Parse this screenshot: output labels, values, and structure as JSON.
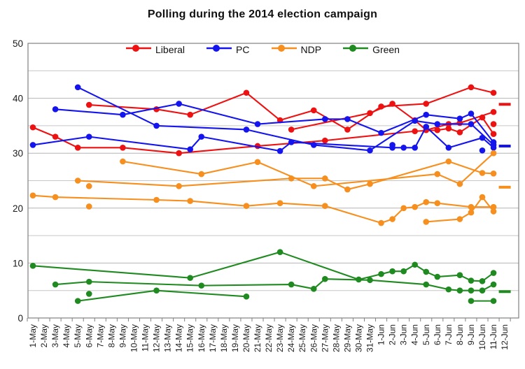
{
  "title": "Polling during the 2014 election campaign",
  "chart_data": {
    "type": "line",
    "title": "Polling during the 2014 election campaign",
    "xlabel": "",
    "ylabel": "",
    "ylim": [
      0,
      50
    ],
    "y_ticks": [
      0,
      10,
      20,
      30,
      40,
      50
    ],
    "gridline_step": 5,
    "legend_position": "top-center",
    "grid": true,
    "colors": {
      "liberal": "#ee1111",
      "pc": "#1414ee",
      "ndp": "#f78f1e",
      "green": "#1f8a1f",
      "gridline": "#c6c6c6",
      "plot_border": "#808080",
      "axis_text": "#1a1a1a"
    },
    "x_categories": [
      "1-May",
      "2-May",
      "3-May",
      "4-May",
      "5-May",
      "6-May",
      "7-May",
      "8-May",
      "9-May",
      "10-May",
      "11-May",
      "12-May",
      "13-May",
      "14-May",
      "15-May",
      "16-May",
      "17-May",
      "18-May",
      "19-May",
      "20-May",
      "21-May",
      "22-May",
      "23-May",
      "24-May",
      "25-May",
      "26-May",
      "27-May",
      "28-May",
      "29-May",
      "30-May",
      "31-May",
      "1-Jun",
      "2-Jun",
      "3-Jun",
      "4-Jun",
      "5-Jun",
      "6-Jun",
      "7-Jun",
      "8-Jun",
      "9-Jun",
      "10-Jun",
      "11-Jun",
      "12-Jun"
    ],
    "legend": [
      {
        "label": "Liberal",
        "color": "#ee1111"
      },
      {
        "label": "PC",
        "color": "#1414ee"
      },
      {
        "label": "NDP",
        "color": "#f78f1e"
      },
      {
        "label": "Green",
        "color": "#1f8a1f"
      }
    ],
    "series": [
      {
        "party": "Liberal",
        "track": 1,
        "color": "#ee1111",
        "points": [
          [
            "1-May",
            34.7
          ],
          [
            "3-May",
            33
          ],
          [
            "5-May",
            31
          ],
          [
            "9-May",
            31
          ],
          [
            "14-May",
            30
          ],
          [
            "21-May",
            31.3
          ],
          [
            "27-May",
            32.3
          ],
          [
            "4-Jun",
            34
          ],
          [
            "6-Jun",
            34.2
          ],
          [
            "7-Jun",
            34.5
          ],
          [
            "8-Jun",
            33.8
          ],
          [
            "10-Jun",
            36.5
          ],
          [
            "11-Jun",
            33.5
          ]
        ]
      },
      {
        "party": "Liberal",
        "track": 2,
        "color": "#ee1111",
        "points": [
          [
            "6-May",
            38.8
          ],
          [
            "12-May",
            38
          ],
          [
            "15-May",
            37
          ],
          [
            "20-May",
            41
          ],
          [
            "23-May",
            36
          ],
          [
            "26-May",
            37.8
          ],
          [
            "29-May",
            34.3
          ],
          [
            "1-Jun",
            38.5
          ],
          [
            "5-Jun",
            39
          ],
          [
            "9-Jun",
            42
          ],
          [
            "11-Jun",
            41
          ]
        ]
      },
      {
        "party": "Liberal",
        "track": 3,
        "color": "#ee1111",
        "points": [
          [
            "24-May",
            34.3
          ],
          [
            "31-May",
            37.3
          ],
          [
            "2-Jun",
            39
          ],
          [
            "4-Jun",
            36
          ],
          [
            "5-Jun",
            34.2
          ],
          [
            "7-Jun",
            35.3
          ],
          [
            "8-Jun",
            35.5
          ],
          [
            "11-Jun",
            37.5
          ]
        ]
      },
      {
        "party": "PC",
        "track": 1,
        "color": "#1414ee",
        "points": [
          [
            "3-May",
            38
          ],
          [
            "9-May",
            37
          ],
          [
            "14-May",
            39
          ],
          [
            "21-May",
            35.3
          ],
          [
            "27-May",
            36.2
          ],
          [
            "29-May",
            36.2
          ],
          [
            "1-Jun",
            33.7
          ],
          [
            "5-Jun",
            37
          ],
          [
            "8-Jun",
            36.3
          ],
          [
            "9-Jun",
            37.2
          ],
          [
            "11-Jun",
            32
          ]
        ]
      },
      {
        "party": "PC",
        "track": 2,
        "color": "#1414ee",
        "points": [
          [
            "5-May",
            42
          ],
          [
            "12-May",
            35
          ],
          [
            "20-May",
            34.3
          ],
          [
            "26-May",
            31.5
          ],
          [
            "31-May",
            30.5
          ],
          [
            "4-Jun",
            35.9
          ],
          [
            "6-Jun",
            35.3
          ],
          [
            "9-Jun",
            35.3
          ],
          [
            "11-Jun",
            31.5
          ]
        ]
      },
      {
        "party": "PC",
        "track": 3,
        "color": "#1414ee",
        "points": [
          [
            "1-May",
            31.5
          ],
          [
            "6-May",
            33
          ],
          [
            "15-May",
            30.7
          ],
          [
            "16-May",
            33
          ],
          [
            "23-May",
            30.4
          ],
          [
            "24-May",
            32
          ],
          [
            "2-Jun",
            31
          ],
          [
            "3-Jun",
            31
          ],
          [
            "4-Jun",
            31
          ],
          [
            "5-Jun",
            34.8
          ],
          [
            "7-Jun",
            31
          ],
          [
            "10-Jun",
            32.8
          ],
          [
            "11-Jun",
            31
          ]
        ]
      },
      {
        "party": "NDP",
        "track": 1,
        "color": "#f78f1e",
        "points": [
          [
            "1-May",
            22.3
          ],
          [
            "3-May",
            22
          ],
          [
            "12-May",
            21.5
          ],
          [
            "15-May",
            21.3
          ],
          [
            "20-May",
            20.4
          ],
          [
            "23-May",
            20.9
          ],
          [
            "27-May",
            20.4
          ],
          [
            "1-Jun",
            17.3
          ],
          [
            "2-Jun",
            18
          ],
          [
            "3-Jun",
            20
          ],
          [
            "4-Jun",
            20.2
          ],
          [
            "5-Jun",
            21.1
          ],
          [
            "6-Jun",
            20.9
          ],
          [
            "9-Jun",
            20.2
          ],
          [
            "11-Jun",
            20.2
          ]
        ]
      },
      {
        "party": "NDP",
        "track": 2,
        "color": "#f78f1e",
        "points": [
          [
            "5-May",
            25
          ],
          [
            "14-May",
            24
          ],
          [
            "24-May",
            25.4
          ],
          [
            "27-May",
            25.4
          ],
          [
            "29-May",
            23.4
          ],
          [
            "31-May",
            24.4
          ],
          [
            "7-Jun",
            28.5
          ],
          [
            "10-Jun",
            26.4
          ],
          [
            "11-Jun",
            26.3
          ]
        ]
      },
      {
        "party": "NDP",
        "track": 3,
        "color": "#f78f1e",
        "points": [
          [
            "9-May",
            28.5
          ],
          [
            "16-May",
            26.2
          ],
          [
            "21-May",
            28.4
          ],
          [
            "26-May",
            24
          ],
          [
            "6-Jun",
            26.2
          ],
          [
            "8-Jun",
            24.4
          ],
          [
            "11-Jun",
            30
          ]
        ]
      },
      {
        "party": "NDP",
        "track": 4,
        "color": "#f78f1e",
        "points": [
          [
            "5-Jun",
            17.5
          ],
          [
            "8-Jun",
            18
          ],
          [
            "9-Jun",
            19.2
          ],
          [
            "10-Jun",
            22
          ],
          [
            "11-Jun",
            19.4
          ]
        ]
      },
      {
        "party": "Green",
        "track": 1,
        "color": "#1f8a1f",
        "points": [
          [
            "1-May",
            9.5
          ],
          [
            "15-May",
            7.3
          ],
          [
            "23-May",
            12
          ],
          [
            "30-May",
            7
          ],
          [
            "1-Jun",
            8
          ],
          [
            "2-Jun",
            8.5
          ],
          [
            "3-Jun",
            8.5
          ],
          [
            "4-Jun",
            9.7
          ],
          [
            "5-Jun",
            8.4
          ],
          [
            "6-Jun",
            7.5
          ],
          [
            "8-Jun",
            7.8
          ],
          [
            "9-Jun",
            6.8
          ],
          [
            "10-Jun",
            6.7
          ],
          [
            "11-Jun",
            8.2
          ]
        ]
      },
      {
        "party": "Green",
        "track": 2,
        "color": "#1f8a1f",
        "points": [
          [
            "3-May",
            6.1
          ],
          [
            "6-May",
            6.6
          ],
          [
            "16-May",
            5.9
          ],
          [
            "24-May",
            6.1
          ],
          [
            "26-May",
            5.3
          ],
          [
            "27-May",
            7.1
          ],
          [
            "31-May",
            6.9
          ],
          [
            "5-Jun",
            6.1
          ],
          [
            "7-Jun",
            5.2
          ],
          [
            "8-Jun",
            5
          ],
          [
            "9-Jun",
            5
          ],
          [
            "10-Jun",
            5
          ],
          [
            "11-Jun",
            6.1
          ]
        ]
      },
      {
        "party": "Green",
        "track": 3,
        "color": "#1f8a1f",
        "points": [
          [
            "5-May",
            3.1
          ],
          [
            "12-May",
            5
          ],
          [
            "20-May",
            3.9
          ]
        ]
      },
      {
        "party": "Green",
        "track": 4,
        "color": "#1f8a1f",
        "points": [
          [
            "9-Jun",
            3.1
          ],
          [
            "11-Jun",
            3.1
          ]
        ]
      }
    ],
    "isolated_points": [
      {
        "party": "Liberal",
        "color": "#ee1111",
        "point": [
          "11-Jun",
          35.3
        ]
      },
      {
        "party": "PC",
        "color": "#1414ee",
        "point": [
          "2-Jun",
          31.5
        ]
      },
      {
        "party": "PC",
        "color": "#1414ee",
        "point": [
          "10-Jun",
          30.5
        ]
      },
      {
        "party": "NDP",
        "color": "#f78f1e",
        "point": [
          "6-May",
          24
        ]
      },
      {
        "party": "NDP",
        "color": "#f78f1e",
        "point": [
          "6-May",
          20.3
        ]
      },
      {
        "party": "Green",
        "color": "#1f8a1f",
        "point": [
          "6-May",
          4.4
        ]
      }
    ],
    "final_result_dashes": [
      {
        "party": "Liberal",
        "date": "12-Jun",
        "value": 38.9,
        "color": "#ee1111"
      },
      {
        "party": "PC",
        "date": "12-Jun",
        "value": 31.3,
        "color": "#1414ee"
      },
      {
        "party": "NDP",
        "date": "12-Jun",
        "value": 23.8,
        "color": "#f78f1e"
      },
      {
        "party": "Green",
        "date": "12-Jun",
        "value": 4.8,
        "color": "#1f8a1f"
      }
    ]
  }
}
